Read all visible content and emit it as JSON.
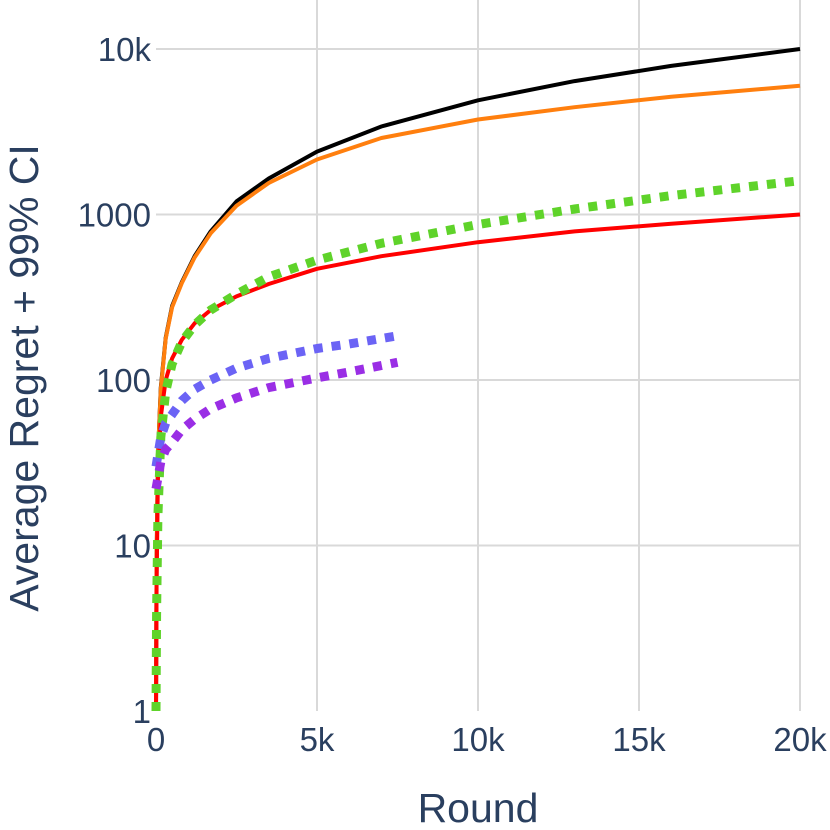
{
  "chart_data": {
    "type": "line",
    "xlabel": "Round",
    "ylabel": "Average Regret + 99% CI",
    "xlim": [
      0,
      20000
    ],
    "ylim": [
      1,
      10000
    ],
    "yscale": "log",
    "grid": true,
    "legend": "none",
    "x_ticks": [
      {
        "value": 0,
        "label": "0"
      },
      {
        "value": 5000,
        "label": "5k"
      },
      {
        "value": 10000,
        "label": "10k"
      },
      {
        "value": 15000,
        "label": "15k"
      },
      {
        "value": 20000,
        "label": "20k"
      }
    ],
    "y_ticks": [
      {
        "value": 1,
        "label": "1"
      },
      {
        "value": 10,
        "label": "10"
      },
      {
        "value": 100,
        "label": "100"
      },
      {
        "value": 1000,
        "label": "1000"
      },
      {
        "value": 10000,
        "label": "10k"
      }
    ],
    "series": [
      {
        "color": "#000000",
        "style": "solid",
        "points": [
          [
            0,
            1
          ],
          [
            20,
            8
          ],
          [
            60,
            35
          ],
          [
            150,
            90
          ],
          [
            300,
            180
          ],
          [
            500,
            280
          ],
          [
            800,
            390
          ],
          [
            1200,
            560
          ],
          [
            1700,
            790
          ],
          [
            2500,
            1200
          ],
          [
            3500,
            1650
          ],
          [
            5000,
            2400
          ],
          [
            7000,
            3400
          ],
          [
            10000,
            4900
          ],
          [
            13000,
            6400
          ],
          [
            16000,
            7900
          ],
          [
            20000,
            10000
          ]
        ]
      },
      {
        "color": "#ff7f0e",
        "style": "solid",
        "points": [
          [
            0,
            1
          ],
          [
            20,
            8
          ],
          [
            60,
            35
          ],
          [
            150,
            88
          ],
          [
            300,
            178
          ],
          [
            500,
            275
          ],
          [
            800,
            385
          ],
          [
            1200,
            550
          ],
          [
            1700,
            770
          ],
          [
            2500,
            1130
          ],
          [
            3500,
            1550
          ],
          [
            5000,
            2150
          ],
          [
            7000,
            2900
          ],
          [
            10000,
            3750
          ],
          [
            13000,
            4450
          ],
          [
            16000,
            5150
          ],
          [
            20000,
            6000
          ]
        ]
      },
      {
        "color": "#ff0000",
        "style": "solid",
        "points": [
          [
            0,
            1
          ],
          [
            20,
            6
          ],
          [
            60,
            25
          ],
          [
            150,
            60
          ],
          [
            300,
            100
          ],
          [
            500,
            135
          ],
          [
            800,
            175
          ],
          [
            1200,
            220
          ],
          [
            1700,
            265
          ],
          [
            2500,
            320
          ],
          [
            3500,
            380
          ],
          [
            5000,
            470
          ],
          [
            7000,
            560
          ],
          [
            10000,
            680
          ],
          [
            13000,
            790
          ],
          [
            16000,
            880
          ],
          [
            20000,
            1000
          ]
        ]
      },
      {
        "color": "#5fd32a",
        "style": "dotted",
        "points": [
          [
            0,
            1
          ],
          [
            20,
            4
          ],
          [
            60,
            15
          ],
          [
            150,
            45
          ],
          [
            300,
            85
          ],
          [
            500,
            125
          ],
          [
            800,
            170
          ],
          [
            1200,
            215
          ],
          [
            1700,
            265
          ],
          [
            2500,
            330
          ],
          [
            3500,
            420
          ],
          [
            5000,
            530
          ],
          [
            7000,
            670
          ],
          [
            10000,
            870
          ],
          [
            13000,
            1080
          ],
          [
            16000,
            1300
          ],
          [
            20000,
            1600
          ]
        ]
      },
      {
        "color": "#6b63f5",
        "style": "dotted",
        "points": [
          [
            0,
            30
          ],
          [
            150,
            45
          ],
          [
            300,
            55
          ],
          [
            500,
            62
          ],
          [
            800,
            75
          ],
          [
            1200,
            88
          ],
          [
            1700,
            100
          ],
          [
            2500,
            118
          ],
          [
            3500,
            135
          ],
          [
            5000,
            155
          ],
          [
            6000,
            165
          ],
          [
            7500,
            185
          ]
        ]
      },
      {
        "color": "#9a2ee5",
        "style": "dotted",
        "points": [
          [
            0,
            22
          ],
          [
            150,
            32
          ],
          [
            300,
            38
          ],
          [
            500,
            42
          ],
          [
            800,
            50
          ],
          [
            1200,
            58
          ],
          [
            1700,
            67
          ],
          [
            2500,
            78
          ],
          [
            3500,
            90
          ],
          [
            5000,
            103
          ],
          [
            6000,
            112
          ],
          [
            7500,
            128
          ]
        ]
      }
    ]
  }
}
